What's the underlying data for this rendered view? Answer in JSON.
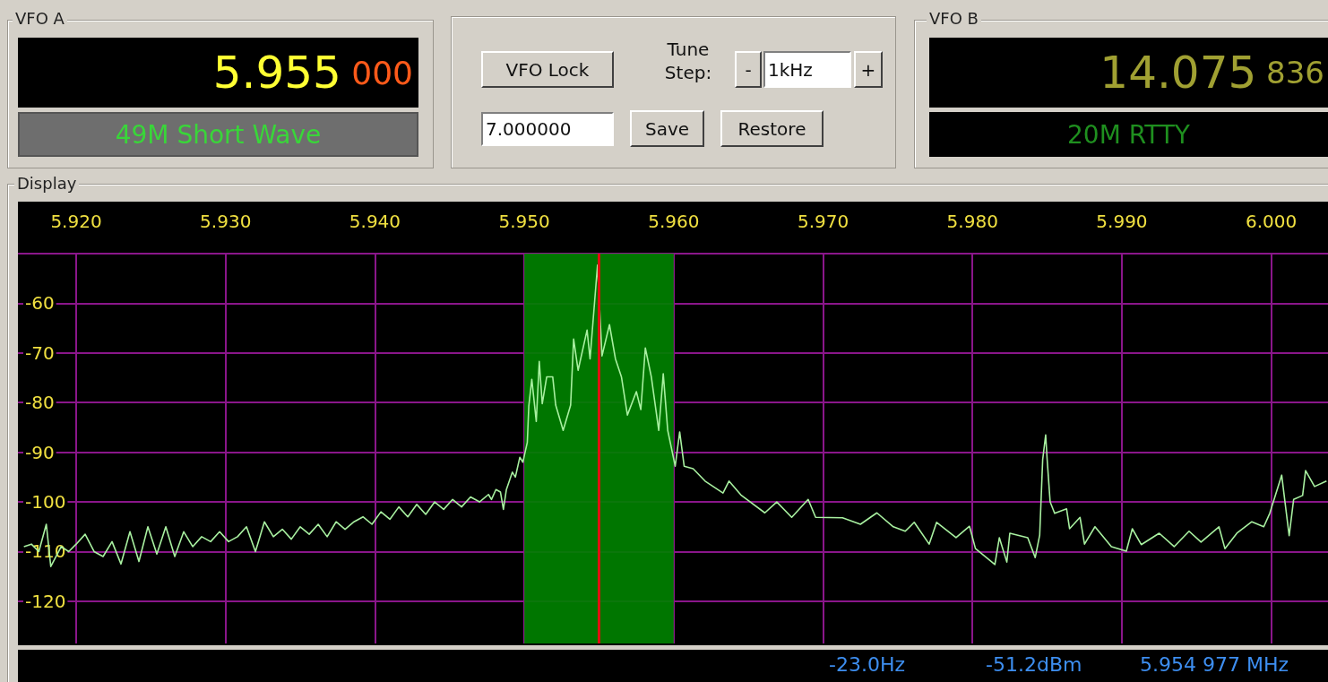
{
  "chart_data": {
    "type": "line",
    "title": "Display",
    "annotations": [
      "VFO A",
      "5.955",
      "000",
      "49M Short Wave",
      "VFO Lock",
      "Tune Step:",
      "-",
      "1kHz",
      "+",
      "7.000000",
      "Save",
      "Restore",
      "VFO B",
      "14.075",
      "836",
      "20M RTTY",
      "-23.0Hz",
      "-51.2dBm",
      "5.954 977 MHz"
    ],
    "x": [
      5.9165,
      5.917,
      5.9175,
      5.918,
      5.9183,
      5.919,
      5.9195,
      5.92,
      5.9206,
      5.9212,
      5.9218,
      5.9224,
      5.923,
      5.9236,
      5.9242,
      5.9248,
      5.9254,
      5.926,
      5.9266,
      5.9272,
      5.9278,
      5.9284,
      5.929,
      5.9296,
      5.9302,
      5.9308,
      5.9314,
      5.932,
      5.9326,
      5.9332,
      5.9338,
      5.9344,
      5.935,
      5.9356,
      5.9362,
      5.9368,
      5.9374,
      5.938,
      5.9386,
      5.9392,
      5.9398,
      5.9404,
      5.941,
      5.9416,
      5.9422,
      5.9428,
      5.9434,
      5.944,
      5.9446,
      5.9452,
      5.9458,
      5.9464,
      5.947,
      5.9476,
      5.9478,
      5.9481,
      5.9484,
      5.9486,
      5.9488,
      5.9492,
      5.9494,
      5.9497,
      5.9499,
      5.9502,
      5.9503,
      5.9505,
      5.9508,
      5.951,
      5.9512,
      5.9515,
      5.9519,
      5.9521,
      5.9526,
      5.9531,
      5.9533,
      5.9536,
      5.9542,
      5.9544,
      5.9549,
      5.955,
      5.9552,
      5.9557,
      5.9561,
      5.9565,
      5.9569,
      5.9575,
      5.9578,
      5.9581,
      5.9585,
      5.959,
      5.9593,
      5.9596,
      5.9601,
      5.9604,
      5.9607,
      5.9613,
      5.9621,
      5.9633,
      5.9637,
      5.9645,
      5.9661,
      5.9669,
      5.9679,
      5.969,
      5.9695,
      5.9713,
      5.9725,
      5.9736,
      5.9747,
      5.9755,
      5.9761,
      5.9771,
      5.9776,
      5.9789,
      5.9798,
      5.9802,
      5.9815,
      5.9818,
      5.9823,
      5.9825,
      5.9837,
      5.9842,
      5.9845,
      5.9847,
      5.9849,
      5.985,
      5.9852,
      5.9855,
      5.9863,
      5.9865,
      5.9872,
      5.9875,
      5.9882,
      5.9893,
      5.9903,
      5.9907,
      5.9913,
      5.9925,
      5.9935,
      5.9945,
      5.9953,
      5.9965,
      5.9969,
      5.9977,
      5.9987,
      5.9995,
      5.9999,
      6.0007,
      6.0009,
      6.0012,
      6.0015,
      6.0021,
      6.0023,
      6.0029,
      6.0037
    ],
    "series": [
      {
        "color": "#a8f0a0",
        "values": [
          -109,
          -108.5,
          -110,
          -104.5,
          -113,
          -109,
          -110,
          -108.5,
          -106.5,
          -110,
          -111,
          -108,
          -112.5,
          -106,
          -112,
          -105,
          -110.5,
          -105,
          -111,
          -106,
          -109,
          -107,
          -108,
          -106,
          -108,
          -107,
          -105,
          -110,
          -104,
          -107,
          -105.5,
          -107.5,
          -105,
          -106.5,
          -104.5,
          -107,
          -104,
          -105.5,
          -104,
          -103,
          -104.5,
          -102,
          -103.5,
          -101,
          -103,
          -100.5,
          -102.5,
          -100,
          -101.5,
          -99.5,
          -101,
          -99,
          -100,
          -98.5,
          -99.5,
          -97.5,
          -98,
          -101.5,
          -97.5,
          -94,
          -95,
          -91,
          -92,
          -88,
          -80.7,
          -75.3,
          -83.8,
          -71.7,
          -80.2,
          -74.8,
          -74.8,
          -80.5,
          -85.6,
          -80.5,
          -67.2,
          -73.5,
          -65.4,
          -71.2,
          -52.3,
          -58.6,
          -70.6,
          -64.3,
          -71.2,
          -74.8,
          -82.5,
          -77.8,
          -81.4,
          -69,
          -74.8,
          -85.6,
          -74.2,
          -85.6,
          -92.8,
          -85.9,
          -92.8,
          -93.3,
          -95.8,
          -98.2,
          -95.8,
          -98.6,
          -102.2,
          -100,
          -103.1,
          -99.5,
          -103.1,
          -103.2,
          -104.5,
          -102.2,
          -105,
          -105.9,
          -104.1,
          -108.5,
          -104.1,
          -107.2,
          -104.9,
          -109.4,
          -112.6,
          -107.2,
          -112.1,
          -106.3,
          -107.2,
          -111.2,
          -106.7,
          -91.5,
          -86.5,
          -91.5,
          -100,
          -102.3,
          -101.4,
          -105.4,
          -103.1,
          -108.5,
          -105,
          -109,
          -109.9,
          -105.4,
          -108.6,
          -106.3,
          -109,
          -105.9,
          -108.1,
          -105,
          -109.4,
          -106.3,
          -104,
          -105,
          -102.3,
          -94.6,
          -99.5,
          -106.8,
          -99.5,
          -98.7,
          -93.7,
          -96.9,
          -95.8
        ]
      }
    ],
    "xlim": [
      5.9161,
      6.0038
    ],
    "xticks": [
      {
        "value": 5.92,
        "label": "5.920"
      },
      {
        "value": 5.93,
        "label": "5.930"
      },
      {
        "value": 5.94,
        "label": "5.940"
      },
      {
        "value": 5.95,
        "label": "5.950"
      },
      {
        "value": 5.96,
        "label": "5.960"
      },
      {
        "value": 5.97,
        "label": "5.970"
      },
      {
        "value": 5.98,
        "label": "5.980"
      },
      {
        "value": 5.99,
        "label": "5.990"
      },
      {
        "value": 6.0,
        "label": "6.000"
      }
    ],
    "ylim": [
      -128.5,
      -50
    ],
    "yticks": [
      {
        "value": -50,
        "label": null
      },
      -60,
      -70,
      -80,
      -90,
      -100,
      -110,
      -120
    ],
    "grid": true,
    "marker": "none",
    "line_style": "solid",
    "bands": [
      {
        "axis": "x",
        "from": 5.95,
        "to": 5.96,
        "color": "#008000"
      }
    ],
    "ref_lines": [
      {
        "axis": "x",
        "value": 5.955,
        "color": "#e01010"
      }
    ]
  }
}
